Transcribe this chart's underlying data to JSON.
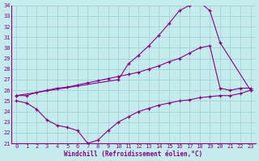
{
  "xlabel": "Windchill (Refroidissement éolien,°C)",
  "xlim": [
    -0.5,
    23.5
  ],
  "ylim": [
    21,
    34
  ],
  "yticks": [
    21,
    22,
    23,
    24,
    25,
    26,
    27,
    28,
    29,
    30,
    31,
    32,
    33,
    34
  ],
  "xticks": [
    0,
    1,
    2,
    3,
    4,
    5,
    6,
    7,
    8,
    9,
    10,
    11,
    12,
    13,
    14,
    15,
    16,
    17,
    18,
    19,
    20,
    21,
    22,
    23
  ],
  "background_color": "#c5eced",
  "line_color": "#880088",
  "grid_color": "#9ecece",
  "line1_x": [
    0,
    10,
    11,
    12,
    13,
    14,
    15,
    16,
    17,
    18,
    19,
    20,
    23
  ],
  "line1_y": [
    25.5,
    27.0,
    28.5,
    29.3,
    30.2,
    31.2,
    32.3,
    33.5,
    34.0,
    34.3,
    33.5,
    30.5,
    26.0
  ],
  "line2_x": [
    0,
    1,
    2,
    3,
    4,
    5,
    6,
    7,
    8,
    9,
    10,
    11,
    12,
    13,
    14,
    15,
    16,
    17,
    18,
    19,
    20,
    21,
    22,
    23
  ],
  "line2_y": [
    25.5,
    25.5,
    25.8,
    26.0,
    26.2,
    26.3,
    26.5,
    26.7,
    26.9,
    27.1,
    27.3,
    27.5,
    27.7,
    28.0,
    28.3,
    28.7,
    29.0,
    29.5,
    30.0,
    30.2,
    26.2,
    26.0,
    26.2,
    26.2
  ],
  "line3_x": [
    0,
    1,
    2,
    3,
    4,
    5,
    6,
    7,
    8,
    9,
    10,
    11,
    12,
    13,
    14,
    15,
    16,
    17,
    18,
    19,
    20,
    21,
    22,
    23
  ],
  "line3_y": [
    25.0,
    24.8,
    24.2,
    23.2,
    22.7,
    22.5,
    22.2,
    21.0,
    21.3,
    22.2,
    23.0,
    23.5,
    24.0,
    24.3,
    24.6,
    24.8,
    25.0,
    25.1,
    25.3,
    25.4,
    25.5,
    25.5,
    25.7,
    26.0
  ]
}
